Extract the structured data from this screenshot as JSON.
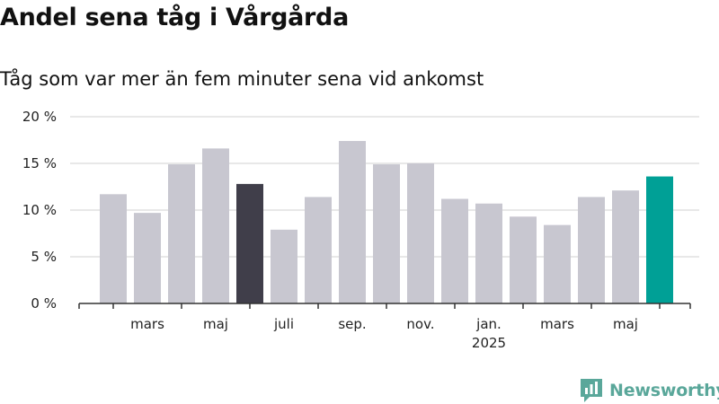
{
  "title": "Andel sena tåg i Vårgårda",
  "subtitle": "Tåg som var mer än fem minuter sena vid ankomst",
  "brand": {
    "name": "Newsworthy",
    "icon": "newsworthy-logo-icon"
  },
  "colors": {
    "bar": "#c8c7d0",
    "highlight_dark": "#403e4a",
    "highlight_teal": "#00a096",
    "grid": "#d9d9d9",
    "axis": "#333333",
    "brand": "#5aa79a"
  },
  "chart_data": {
    "type": "bar",
    "title": "Andel sena tåg i Vårgårda",
    "subtitle": "Tåg som var mer än fem minuter sena vid ankomst",
    "xlabel": "",
    "ylabel": "",
    "ylim": [
      0,
      20
    ],
    "y_ticks": [
      0,
      5,
      10,
      15,
      20
    ],
    "y_tick_labels": [
      "0 %",
      "5 %",
      "10 %",
      "15 %",
      "20 %"
    ],
    "grid": true,
    "x_tick_labels": [
      {
        "bar": 1,
        "label": "mars",
        "sub": ""
      },
      {
        "bar": 3,
        "label": "maj",
        "sub": ""
      },
      {
        "bar": 5,
        "label": "juli",
        "sub": ""
      },
      {
        "bar": 7,
        "label": "sep.",
        "sub": ""
      },
      {
        "bar": 9,
        "label": "nov.",
        "sub": ""
      },
      {
        "bar": 11,
        "label": "jan.",
        "sub": "2025"
      },
      {
        "bar": 13,
        "label": "mars",
        "sub": ""
      },
      {
        "bar": 15,
        "label": "maj",
        "sub": ""
      }
    ],
    "values": [
      11.7,
      9.7,
      14.9,
      16.6,
      12.8,
      7.9,
      11.4,
      17.4,
      14.9,
      15.0,
      11.2,
      10.7,
      9.3,
      8.4,
      11.4,
      12.1,
      13.6
    ],
    "highlight": {
      "4": "dark",
      "16": "teal"
    }
  }
}
